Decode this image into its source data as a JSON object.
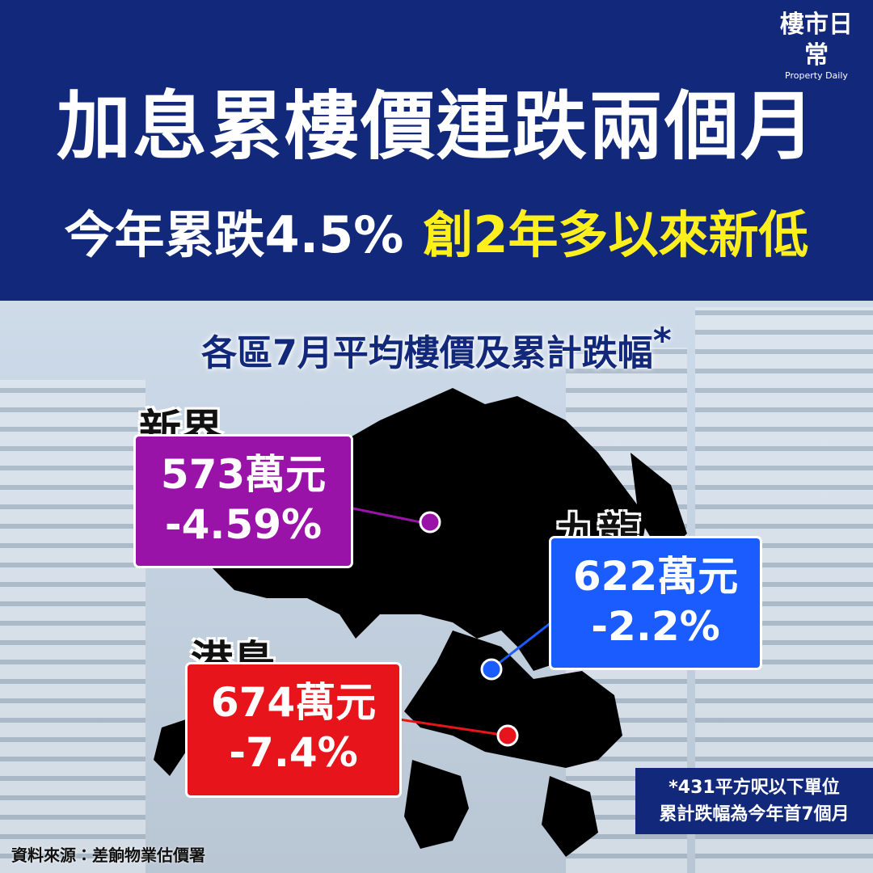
{
  "header": {
    "logo": {
      "name": "樓市日常",
      "tagline": "Property Daily"
    },
    "title": "加息累樓價連跌兩個月",
    "subtitle": {
      "lead": "今年累跌4.5%",
      "highlight": "創2年多以來新低"
    }
  },
  "map": {
    "title": "各區7月平均樓價及累計跌幅",
    "title_mark": "*",
    "regions": [
      {
        "name": "新界",
        "price": "573萬元",
        "change": "-4.59%"
      },
      {
        "name": "九龍",
        "price": "622萬元",
        "change": "-2.2%"
      },
      {
        "name": "港島",
        "price": "674萬元",
        "change": "-7.4%"
      }
    ]
  },
  "footnote": {
    "line1": "*431平方呎以下單位",
    "line2": "累計跌幅為今年首7個月"
  },
  "source": "資料來源：差餉物業估價署"
}
